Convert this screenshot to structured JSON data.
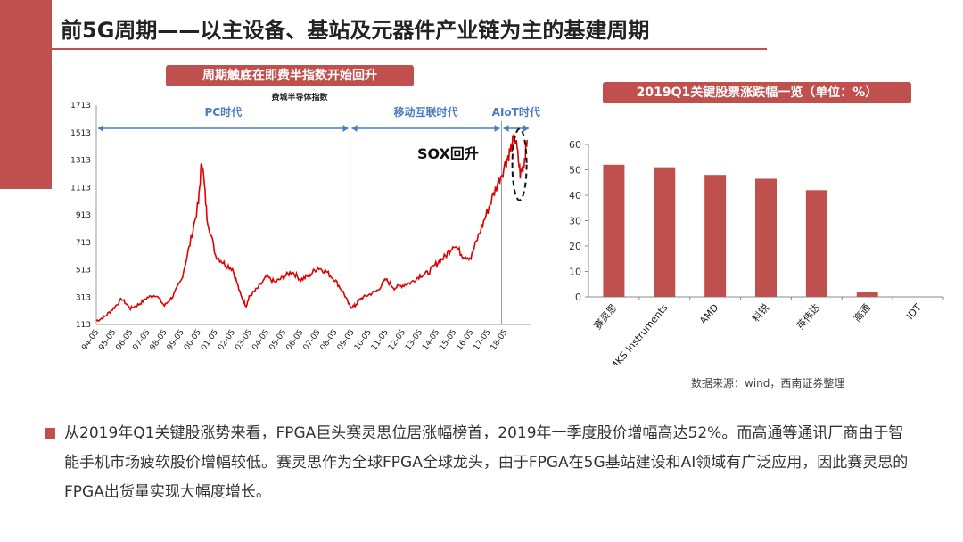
{
  "slide": {
    "title": "前5G周期——以主设备、基站及元器件产业链为主的基建周期",
    "left_caption": "周期触底在即费半指数开始回升",
    "right_caption": "2019Q1关键股票涨跌幅一览（单位：%）",
    "source": "数据来源：wind，西南证券整理",
    "body": "从2019年Q1关键股涨势来看，FPGA巨头赛灵思位居涨幅榜首，2019年一季度股价增幅高达52%。而高通等通讯厂商由于智能手机市场疲软股价增幅较低。赛灵思作为全球FPGA全球龙头，由于FPGA在5G基站建设和AI领域有广泛应用，因此赛灵思的FPGA出货量实现大幅度增长。"
  },
  "colors": {
    "accent": "#c0504d",
    "line": "#e00000",
    "bar": "#c0504d",
    "era_text": "#4a7cc2"
  },
  "chart_data": [
    {
      "type": "line",
      "title": "费城半导体指数",
      "ylim": [
        113,
        1713
      ],
      "yticks": [
        "113",
        "313",
        "513",
        "713",
        "913",
        "1113",
        "1313",
        "1513",
        "1713"
      ],
      "xticks": [
        "94-05",
        "95-05",
        "96-05",
        "97-05",
        "98-05",
        "99-05",
        "00-05",
        "01-05",
        "02-05",
        "03-05",
        "04-05",
        "05-05",
        "06-05",
        "07-05",
        "08-05",
        "09-05",
        "10-05",
        "11-05",
        "12-05",
        "13-05",
        "14-05",
        "15-05",
        "16-05",
        "17-05",
        "18-05"
      ],
      "x": [
        1994.0,
        1994.5,
        1995.0,
        1995.5,
        1996.0,
        1996.5,
        1997.0,
        1997.5,
        1998.0,
        1998.5,
        1999.0,
        1999.5,
        2000.0,
        2000.2,
        2000.5,
        2001.0,
        2001.5,
        2002.0,
        2002.5,
        2002.8,
        2003.0,
        2003.5,
        2004.0,
        2004.5,
        2005.0,
        2005.5,
        2006.0,
        2006.5,
        2007.0,
        2007.5,
        2008.0,
        2008.5,
        2008.9,
        2009.2,
        2009.5,
        2010.0,
        2010.5,
        2011.0,
        2011.5,
        2012.0,
        2012.5,
        2013.0,
        2013.5,
        2014.0,
        2014.5,
        2015.0,
        2015.5,
        2016.0,
        2016.5,
        2017.0,
        2017.5,
        2018.0,
        2018.3,
        2018.6,
        2018.9,
        2019.1,
        2019.3
      ],
      "y": [
        140,
        170,
        230,
        300,
        230,
        260,
        310,
        330,
        250,
        320,
        440,
        700,
        1000,
        1330,
        900,
        620,
        560,
        520,
        320,
        250,
        320,
        380,
        460,
        420,
        460,
        500,
        440,
        470,
        530,
        500,
        440,
        350,
        240,
        250,
        300,
        330,
        360,
        440,
        380,
        400,
        420,
        470,
        490,
        560,
        610,
        700,
        620,
        600,
        780,
        950,
        1120,
        1280,
        1380,
        1480,
        1210,
        1280,
        1460
      ],
      "annotations": {
        "eras": [
          "PC时代",
          "移动互联时代",
          "AIoT时代"
        ],
        "callout": "SOX回升"
      }
    },
    {
      "type": "bar",
      "categories": [
        "赛灵思",
        "MKS Instruments",
        "AMD",
        "科锐",
        "英伟达",
        "高通",
        "IDT"
      ],
      "values": [
        52,
        51,
        48,
        46.5,
        42,
        2,
        0
      ],
      "ylim": [
        0,
        60
      ],
      "yticks": [
        "0",
        "10",
        "20",
        "30",
        "40",
        "50",
        "60"
      ]
    }
  ]
}
